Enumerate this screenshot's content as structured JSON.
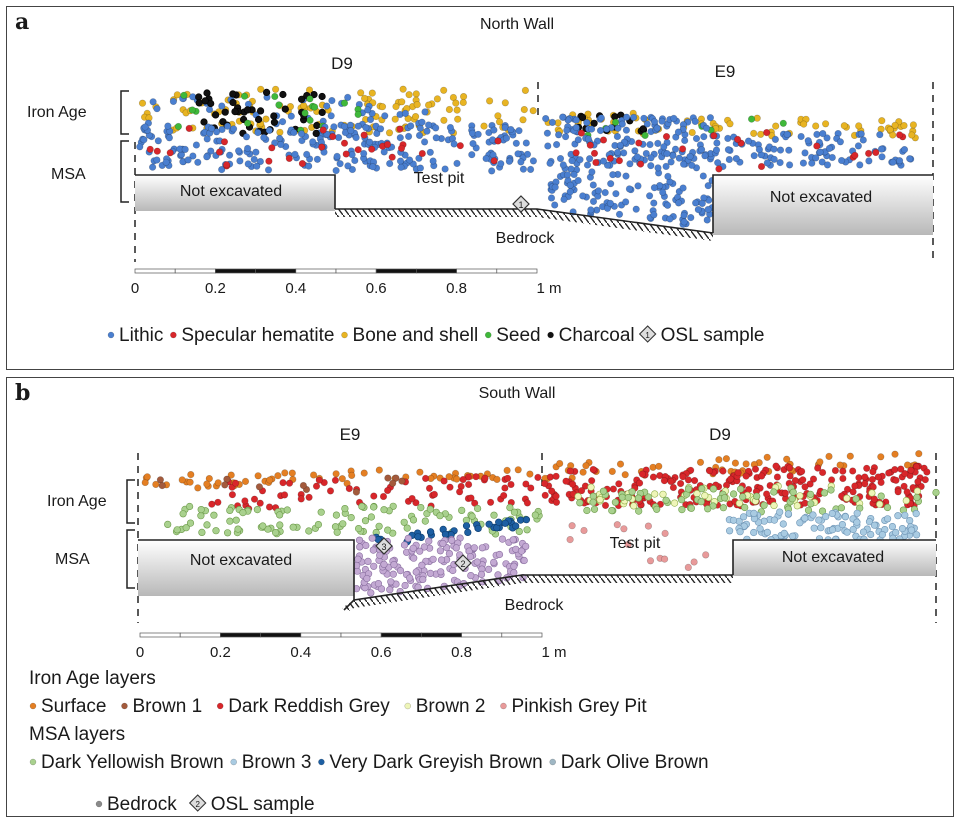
{
  "panels": {
    "a": {
      "letter": "a",
      "title": "North Wall",
      "left_square": "D9",
      "right_square": "E9",
      "layer_iron_age": "Iron Age",
      "layer_msa": "MSA",
      "not_excavated_left": "Not excavated",
      "not_excavated_right": "Not excavated",
      "test_pit": "Test pit",
      "bedrock": "Bedrock",
      "osl_number": "1",
      "scale_ticks": [
        "0",
        "0.2",
        "0.4",
        "0.6",
        "0.8",
        "1 m"
      ],
      "legend": [
        {
          "label": "Lithic",
          "color": "#4a7fd0"
        },
        {
          "label": "Specular hematite",
          "color": "#d8262a"
        },
        {
          "label": "Bone and shell",
          "color": "#e8b422"
        },
        {
          "label": "Seed",
          "color": "#3fb83a"
        },
        {
          "label": "Charcoal",
          "color": "#111111"
        },
        {
          "label": "OSL sample",
          "icon": "osl-diamond-icon"
        }
      ],
      "legend_osl_number": "1"
    },
    "b": {
      "letter": "b",
      "title": "South Wall",
      "left_square": "E9",
      "right_square": "D9",
      "layer_iron_age": "Iron Age",
      "layer_msa": "MSA",
      "not_excavated_left": "Not excavated",
      "not_excavated_right": "Not excavated",
      "test_pit": "Test pit",
      "bedrock": "Bedrock",
      "osl_numbers": [
        "3",
        "2"
      ],
      "scale_ticks": [
        "0",
        "0.2",
        "0.4",
        "0.6",
        "0.8",
        "1 m"
      ],
      "legend_heading_iron": "Iron Age layers",
      "legend_iron": [
        {
          "label": "Surface",
          "color": "#e47f23"
        },
        {
          "label": "Brown 1",
          "color": "#a35a3c"
        },
        {
          "label": "Dark Reddish Grey",
          "color": "#d8262a"
        },
        {
          "label": "Brown 2",
          "color": "#eef5b8"
        },
        {
          "label": "Pinkish Grey Pit",
          "color": "#e89a9a"
        }
      ],
      "legend_heading_msa": "MSA layers",
      "legend_msa": [
        {
          "label": "Dark Yellowish Brown",
          "color": "#a9d18e"
        },
        {
          "label": "Brown 3",
          "color": "#a9cbe2"
        },
        {
          "label": "Very Dark Greyish Brown",
          "color": "#1d5fa3"
        },
        {
          "label": "Dark Olive Brown",
          "color": "#9fb7c4"
        }
      ],
      "legend_other": [
        {
          "label": "Bedrock",
          "color": "#8a8a8a"
        },
        {
          "label": "OSL sample",
          "icon": "osl-diamond-icon"
        }
      ],
      "legend_osl_number": "2",
      "layer_colors": {
        "lavender": "#c3a9d3"
      }
    }
  }
}
